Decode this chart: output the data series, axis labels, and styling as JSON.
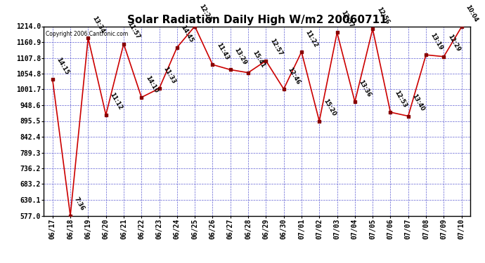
{
  "title": "Solar Radiation Daily High W/m2 20060711",
  "copyright": "Copyright 2006 Cantronic.com",
  "background_color": "#ffffff",
  "plot_bg_color": "#ffffff",
  "line_color": "#cc0000",
  "marker_color": "#880000",
  "grid_color": "#4444cc",
  "text_color": "#000000",
  "x_labels": [
    "06/17",
    "06/18",
    "06/19",
    "06/20",
    "06/21",
    "06/22",
    "06/23",
    "06/24",
    "06/25",
    "06/26",
    "06/27",
    "06/28",
    "06/29",
    "06/30",
    "07/01",
    "07/02",
    "07/03",
    "07/04",
    "07/05",
    "07/06",
    "07/07",
    "07/08",
    "07/09",
    "07/10"
  ],
  "y_values": [
    1035.0,
    577.0,
    1175.0,
    916.0,
    1155.0,
    975.0,
    1005.0,
    1143.0,
    1214.0,
    1085.0,
    1068.0,
    1058.0,
    1098.0,
    1003.0,
    1128.0,
    895.0,
    1193.0,
    960.0,
    1205.0,
    925.0,
    912.0,
    1118.0,
    1112.0,
    1212.0
  ],
  "point_labels": [
    "14:15",
    "7:36",
    "13:34",
    "11:12",
    "11:57",
    "14:10",
    "11:33",
    "14:45",
    "12:21",
    "11:43",
    "13:29",
    "15:41",
    "12:57",
    "12:46",
    "11:22",
    "15:20",
    "12:57",
    "13:36",
    "12:56",
    "12:53",
    "13:40",
    "13:19",
    "12:29",
    "10:04"
  ],
  "y_ticks": [
    577.0,
    630.1,
    683.2,
    736.2,
    789.3,
    842.4,
    895.5,
    948.6,
    1001.7,
    1054.8,
    1107.8,
    1160.9,
    1214.0
  ],
  "ylim_min": 577.0,
  "ylim_max": 1214.0,
  "title_fontsize": 11,
  "label_fontsize": 6,
  "tick_fontsize": 7,
  "copyright_fontsize": 5.5
}
